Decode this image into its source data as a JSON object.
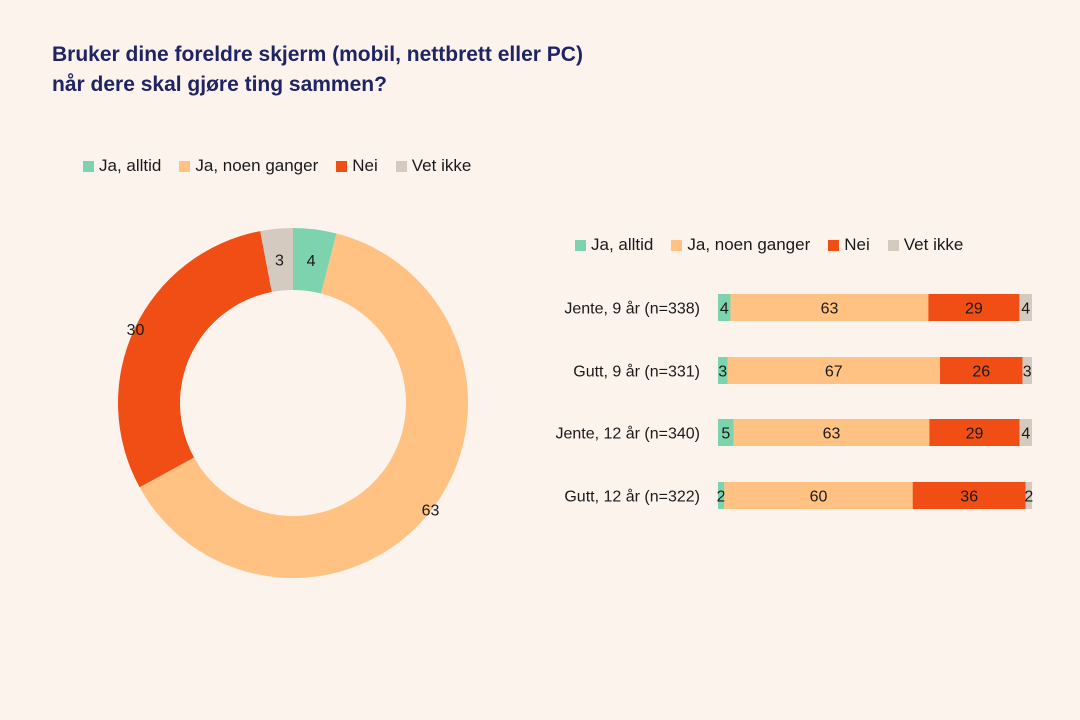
{
  "title_lines": [
    "Bruker dine foreldre skjerm (mobil, nettbrett eller PC)",
    "når dere skal gjøre ting sammen?"
  ],
  "colors": {
    "Ja, alltid": "#7dd3ae",
    "Ja, noen ganger": "#ffc283",
    "Nei": "#f04e14",
    "Vet ikke": "#d5cac0"
  },
  "chart_data": [
    {
      "type": "pie",
      "subtype": "donut",
      "legend_position": "top-left",
      "categories": [
        "Ja, alltid",
        "Ja, noen ganger",
        "Nei",
        "Vet ikke"
      ],
      "values": [
        4,
        63,
        30,
        3
      ]
    },
    {
      "type": "bar",
      "orientation": "horizontal",
      "stacked": true,
      "legend_position": "top",
      "categories": [
        "Jente, 9 år (n=338)",
        "Gutt, 9 år (n=331)",
        "Jente, 12 år (n=340)",
        "Gutt, 12 år (n=322)"
      ],
      "series": [
        {
          "name": "Ja, alltid",
          "values": [
            4,
            3,
            5,
            2
          ]
        },
        {
          "name": "Ja, noen ganger",
          "values": [
            63,
            67,
            63,
            60
          ]
        },
        {
          "name": "Nei",
          "values": [
            29,
            26,
            29,
            36
          ]
        },
        {
          "name": "Vet ikke",
          "values": [
            4,
            3,
            4,
            2
          ]
        }
      ]
    }
  ]
}
